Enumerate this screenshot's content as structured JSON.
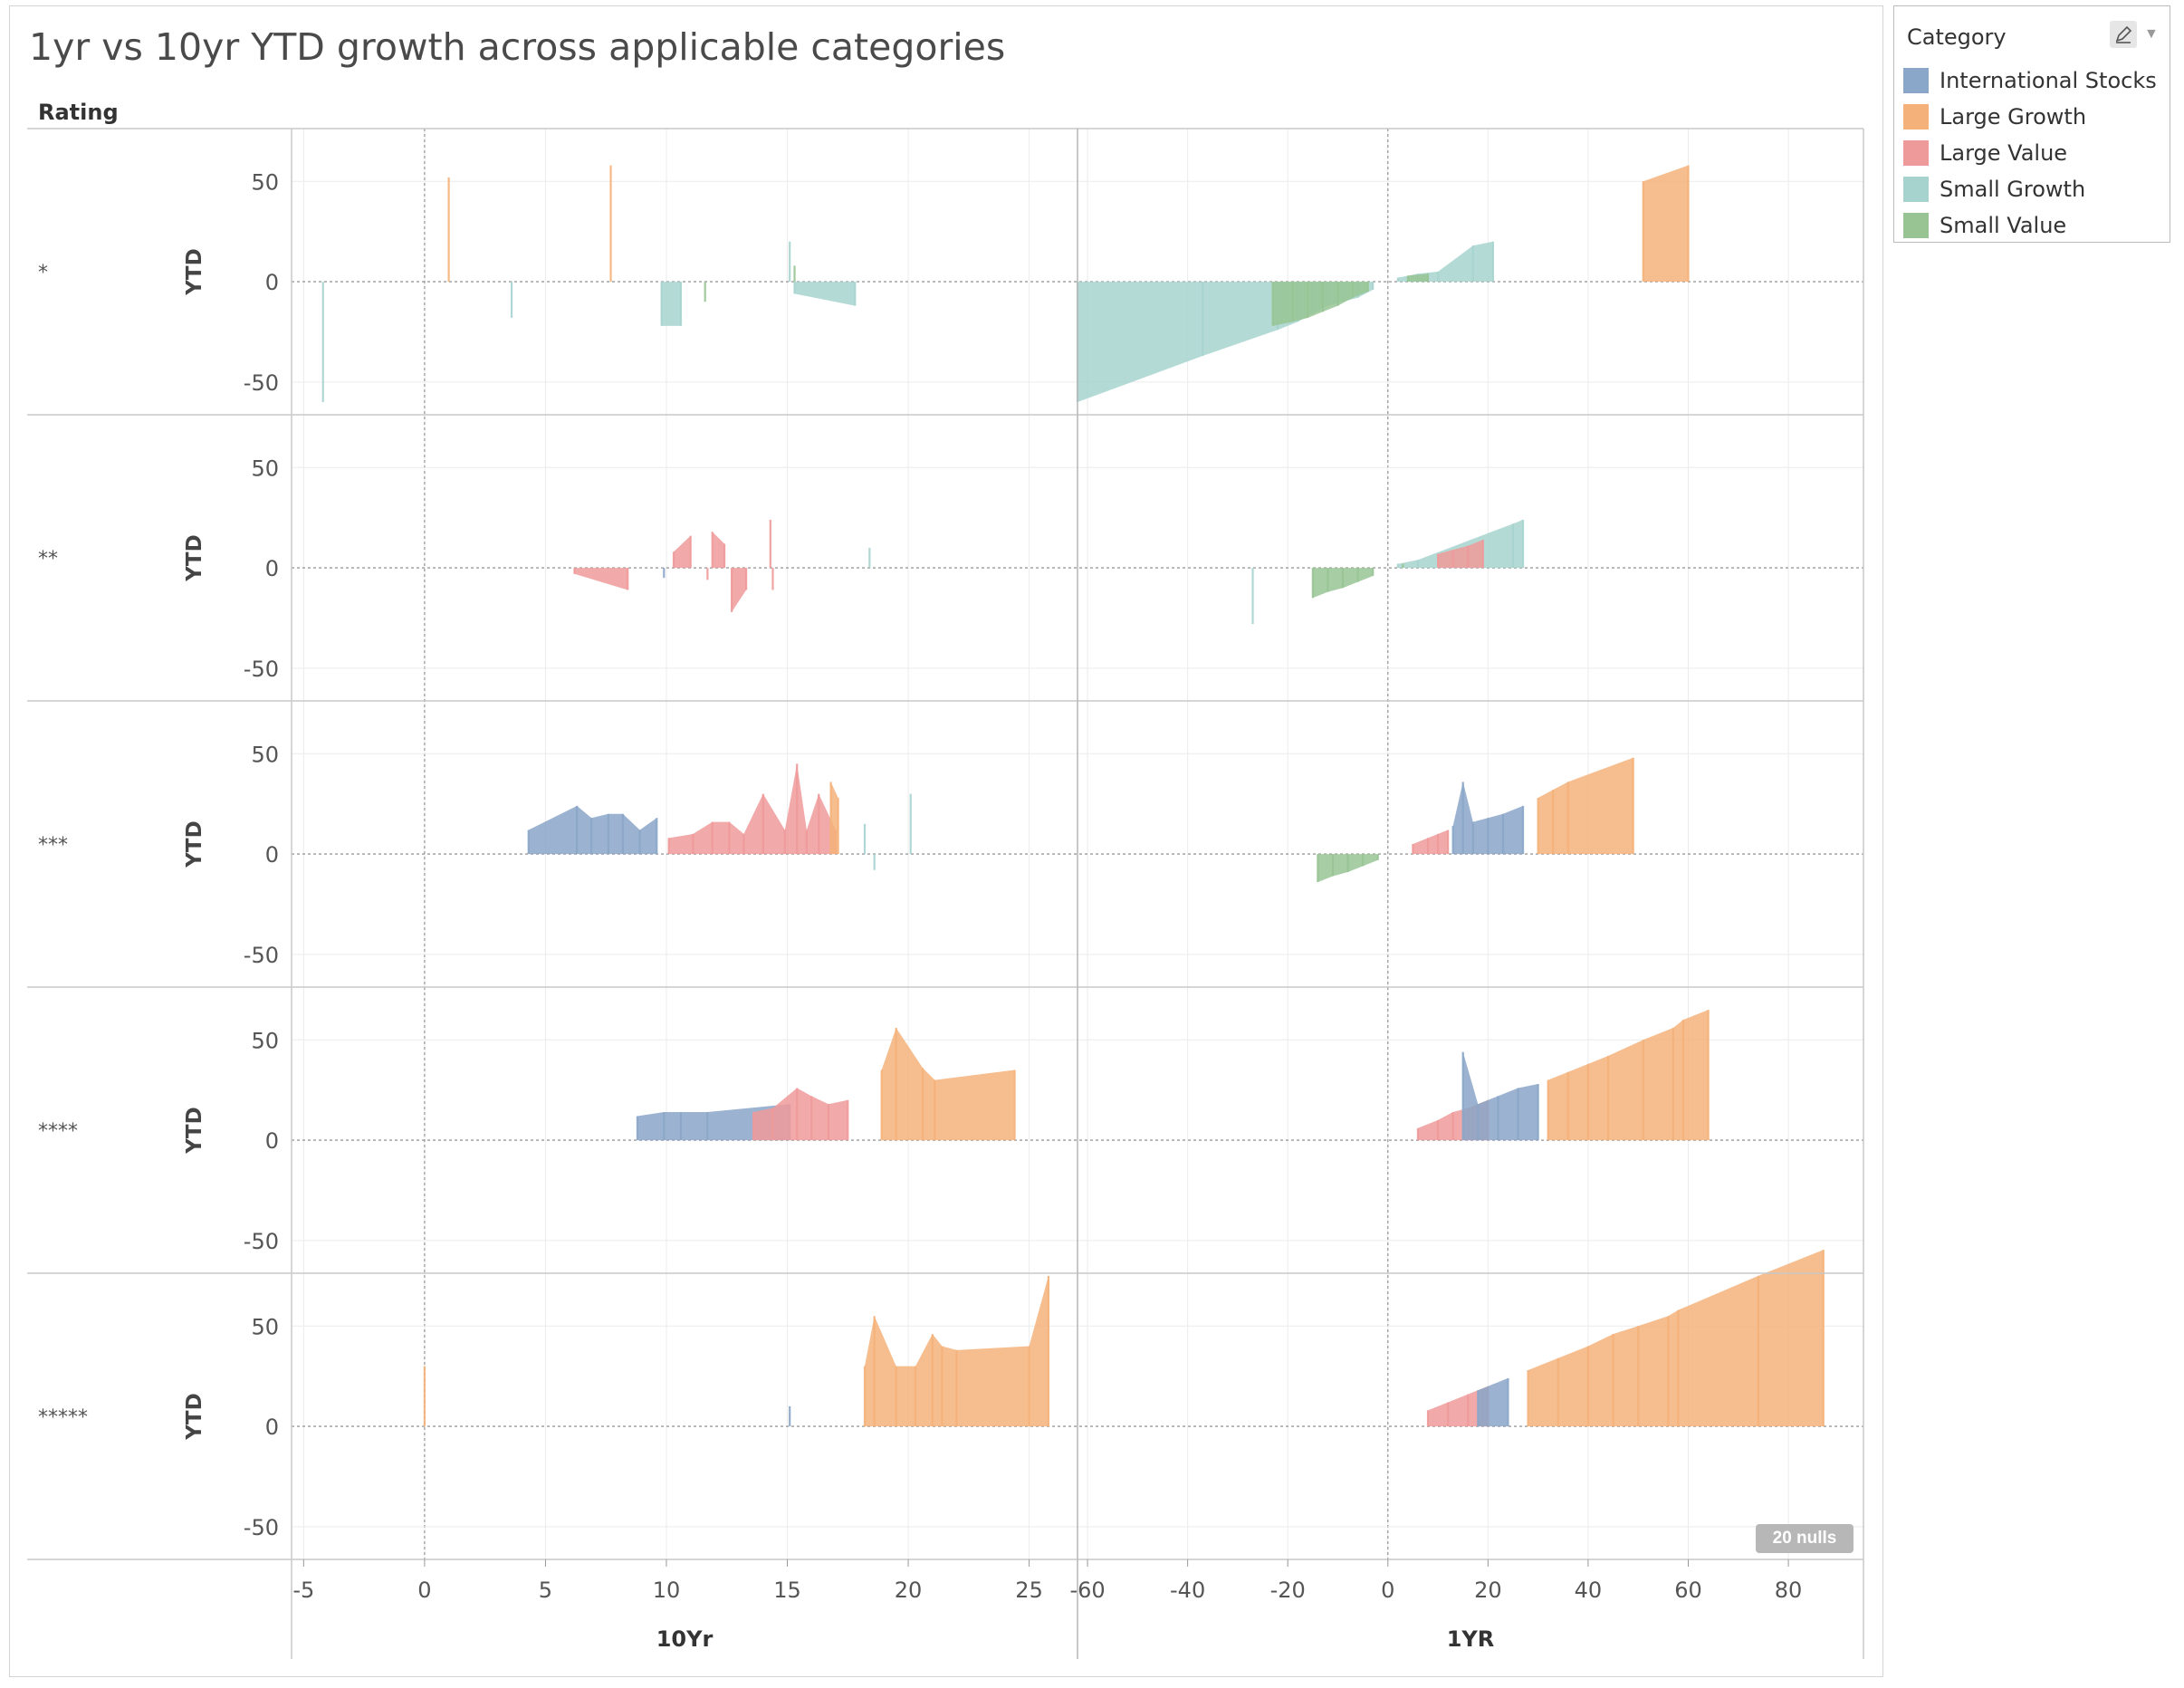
{
  "title": "1yr vs 10yr YTD growth across applicable categories",
  "row_header": "Rating",
  "nulls_badge": "20 nulls",
  "legend": {
    "title": "Category",
    "items": [
      {
        "label": "International Stocks",
        "color": "#8aa6c8"
      },
      {
        "label": "Large Growth",
        "color": "#f4b27a"
      },
      {
        "label": "Large Value",
        "color": "#ef9a9a"
      },
      {
        "label": "Small Growth",
        "color": "#a7d3cf"
      },
      {
        "label": "Small Value",
        "color": "#98c494"
      }
    ]
  },
  "chart_data": {
    "type": "area",
    "row_field": "Rating",
    "rows": [
      "*",
      "**",
      "***",
      "****",
      "*****"
    ],
    "y_label": "YTD",
    "y_ticks": [
      50,
      0,
      -50
    ],
    "ylim": [
      -60,
      70
    ],
    "panels": [
      {
        "xlabel": "10Yr",
        "xlim": [
          -5.5,
          27
        ],
        "x_ticks": [
          -5,
          0,
          5,
          10,
          15,
          20,
          25
        ]
      },
      {
        "xlabel": "1YR",
        "xlim": [
          -62,
          95
        ],
        "x_ticks": [
          -60,
          -40,
          -20,
          0,
          20,
          40,
          60,
          80
        ]
      }
    ],
    "grid": true,
    "legend_position": "right",
    "series": [
      {
        "row": "*",
        "panel": "10Yr",
        "category": "Small Growth",
        "points": [
          [
            -4.2,
            -60
          ],
          [
            3.6,
            -18
          ],
          [
            9.8,
            -22
          ],
          [
            10.6,
            -22
          ],
          [
            15.1,
            20
          ],
          [
            15.3,
            -6
          ],
          [
            17.8,
            -12
          ]
        ]
      },
      {
        "row": "*",
        "panel": "10Yr",
        "category": "Large Growth",
        "points": [
          [
            1,
            52
          ],
          [
            7.7,
            58
          ]
        ]
      },
      {
        "row": "*",
        "panel": "10Yr",
        "category": "Small Value",
        "points": [
          [
            11.6,
            -10
          ],
          [
            15.3,
            8
          ]
        ]
      },
      {
        "row": "*",
        "panel": "1YR",
        "category": "Small Growth",
        "points": [
          [
            -62,
            -60
          ],
          [
            -37,
            -37
          ],
          [
            -22,
            -24
          ],
          [
            -18,
            -20
          ],
          [
            -15,
            -16
          ],
          [
            -12,
            -12
          ],
          [
            -9,
            -10
          ],
          [
            -6,
            -8
          ],
          [
            -3,
            -4
          ],
          [
            2,
            2
          ],
          [
            6,
            4
          ],
          [
            10,
            5
          ],
          [
            17,
            18
          ],
          [
            21,
            20
          ]
        ]
      },
      {
        "row": "*",
        "panel": "1YR",
        "category": "Small Value",
        "points": [
          [
            -23,
            -22
          ],
          [
            -19,
            -20
          ],
          [
            -16,
            -18
          ],
          [
            -13,
            -15
          ],
          [
            -10,
            -12
          ],
          [
            -7,
            -8
          ],
          [
            -4,
            -5
          ],
          [
            4,
            3
          ],
          [
            8,
            4
          ]
        ]
      },
      {
        "row": "*",
        "panel": "1YR",
        "category": "Large Growth",
        "points": [
          [
            51,
            50
          ],
          [
            60,
            58
          ]
        ]
      },
      {
        "row": "**",
        "panel": "10Yr",
        "category": "Large Value",
        "points": [
          [
            6.2,
            -3
          ],
          [
            8.4,
            -11
          ],
          [
            10.3,
            8
          ],
          [
            11.0,
            16
          ],
          [
            11.7,
            -6
          ],
          [
            11.9,
            18
          ],
          [
            12.4,
            12
          ],
          [
            12.7,
            -22
          ],
          [
            13.3,
            -11
          ],
          [
            14.3,
            24
          ],
          [
            14.4,
            -11
          ]
        ]
      },
      {
        "row": "**",
        "panel": "10Yr",
        "category": "International Stocks",
        "points": [
          [
            9.9,
            -5
          ]
        ]
      },
      {
        "row": "**",
        "panel": "10Yr",
        "category": "Small Growth",
        "points": [
          [
            18.4,
            10
          ]
        ]
      },
      {
        "row": "**",
        "panel": "1YR",
        "category": "Small Growth",
        "points": [
          [
            -27,
            -28
          ],
          [
            2,
            2
          ],
          [
            6,
            4
          ],
          [
            25,
            22
          ],
          [
            27,
            24
          ]
        ]
      },
      {
        "row": "**",
        "panel": "1YR",
        "category": "Small Value",
        "points": [
          [
            -15,
            -15
          ],
          [
            -12,
            -12
          ],
          [
            -9,
            -10
          ],
          [
            -6,
            -7
          ],
          [
            -3,
            -4
          ],
          [
            3,
            2
          ]
        ]
      },
      {
        "row": "**",
        "panel": "1YR",
        "category": "Large Value",
        "points": [
          [
            10,
            7
          ],
          [
            13,
            9
          ],
          [
            16,
            11
          ],
          [
            19,
            14
          ]
        ]
      },
      {
        "row": "***",
        "panel": "10Yr",
        "category": "International Stocks",
        "points": [
          [
            4.3,
            12
          ],
          [
            6.3,
            24
          ],
          [
            6.9,
            18
          ],
          [
            7.6,
            20
          ],
          [
            8.2,
            20
          ],
          [
            8.9,
            12
          ],
          [
            9.6,
            18
          ]
        ]
      },
      {
        "row": "***",
        "panel": "10Yr",
        "category": "Large Value",
        "points": [
          [
            10.1,
            8
          ],
          [
            11.1,
            10
          ],
          [
            11.9,
            16
          ],
          [
            12.6,
            16
          ],
          [
            13.2,
            10
          ],
          [
            14.0,
            30
          ],
          [
            14.9,
            12
          ],
          [
            15.4,
            45
          ],
          [
            15.8,
            12
          ],
          [
            16.3,
            30
          ],
          [
            17.0,
            12
          ]
        ]
      },
      {
        "row": "***",
        "panel": "10Yr",
        "category": "Large Growth",
        "points": [
          [
            16.8,
            36
          ],
          [
            17.1,
            28
          ]
        ]
      },
      {
        "row": "***",
        "panel": "10Yr",
        "category": "Small Growth",
        "points": [
          [
            18.2,
            15
          ],
          [
            18.6,
            -8
          ],
          [
            20.1,
            30
          ]
        ]
      },
      {
        "row": "***",
        "panel": "1YR",
        "category": "Small Value",
        "points": [
          [
            -14,
            -14
          ],
          [
            -11,
            -11
          ],
          [
            -8,
            -9
          ],
          [
            -5,
            -6
          ],
          [
            -2,
            -3
          ]
        ]
      },
      {
        "row": "***",
        "panel": "1YR",
        "category": "International Stocks",
        "points": [
          [
            13,
            14
          ],
          [
            15,
            36
          ],
          [
            17,
            16
          ],
          [
            20,
            18
          ],
          [
            23,
            20
          ],
          [
            27,
            24
          ]
        ]
      },
      {
        "row": "***",
        "panel": "1YR",
        "category": "Large Value",
        "points": [
          [
            5,
            5
          ],
          [
            8,
            8
          ],
          [
            10,
            10
          ],
          [
            12,
            12
          ]
        ]
      },
      {
        "row": "***",
        "panel": "1YR",
        "category": "Large Growth",
        "points": [
          [
            30,
            28
          ],
          [
            33,
            32
          ],
          [
            36,
            36
          ],
          [
            49,
            48
          ]
        ]
      },
      {
        "row": "****",
        "panel": "10Yr",
        "category": "International Stocks",
        "points": [
          [
            8.8,
            12
          ],
          [
            9.9,
            14
          ],
          [
            10.6,
            14
          ],
          [
            11.7,
            14
          ],
          [
            15.1,
            18
          ]
        ]
      },
      {
        "row": "****",
        "panel": "10Yr",
        "category": "Large Value",
        "points": [
          [
            13.6,
            14
          ],
          [
            14.4,
            16
          ],
          [
            15.4,
            26
          ],
          [
            16.0,
            22
          ],
          [
            16.7,
            18
          ],
          [
            17.5,
            20
          ]
        ]
      },
      {
        "row": "****",
        "panel": "10Yr",
        "category": "Large Growth",
        "points": [
          [
            18.9,
            35
          ],
          [
            19.5,
            56
          ],
          [
            20.6,
            36
          ],
          [
            21.1,
            30
          ],
          [
            24.4,
            35
          ]
        ]
      },
      {
        "row": "****",
        "panel": "1YR",
        "category": "Large Value",
        "points": [
          [
            6,
            6
          ],
          [
            10,
            10
          ],
          [
            13,
            14
          ],
          [
            16,
            16
          ],
          [
            20,
            20
          ]
        ]
      },
      {
        "row": "****",
        "panel": "1YR",
        "category": "International Stocks",
        "points": [
          [
            15,
            44
          ],
          [
            18,
            18
          ],
          [
            22,
            22
          ],
          [
            26,
            26
          ],
          [
            30,
            28
          ]
        ]
      },
      {
        "row": "****",
        "panel": "1YR",
        "category": "Large Growth",
        "points": [
          [
            32,
            30
          ],
          [
            36,
            34
          ],
          [
            40,
            38
          ],
          [
            44,
            42
          ],
          [
            51,
            50
          ],
          [
            57,
            56
          ],
          [
            59,
            60
          ],
          [
            64,
            65
          ]
        ]
      },
      {
        "row": "*****",
        "panel": "10Yr",
        "category": "Large Growth",
        "points": [
          [
            0,
            30
          ],
          [
            18.2,
            30
          ],
          [
            18.6,
            55
          ],
          [
            19.5,
            30
          ],
          [
            20.3,
            30
          ],
          [
            21.0,
            46
          ],
          [
            21.4,
            40
          ],
          [
            22.0,
            38
          ],
          [
            25.0,
            40
          ],
          [
            25.8,
            75
          ]
        ]
      },
      {
        "row": "*****",
        "panel": "10Yr",
        "category": "International Stocks",
        "points": [
          [
            15.1,
            10
          ]
        ]
      },
      {
        "row": "*****",
        "panel": "1YR",
        "category": "Large Value",
        "points": [
          [
            8,
            8
          ],
          [
            12,
            12
          ],
          [
            16,
            16
          ],
          [
            20,
            20
          ]
        ]
      },
      {
        "row": "*****",
        "panel": "1YR",
        "category": "International Stocks",
        "points": [
          [
            18,
            18
          ],
          [
            24,
            24
          ]
        ]
      },
      {
        "row": "*****",
        "panel": "1YR",
        "category": "Large Growth",
        "points": [
          [
            28,
            28
          ],
          [
            34,
            34
          ],
          [
            40,
            40
          ],
          [
            45,
            46
          ],
          [
            50,
            50
          ],
          [
            56,
            55
          ],
          [
            58,
            58
          ],
          [
            74,
            75
          ],
          [
            87,
            88
          ]
        ]
      }
    ]
  }
}
